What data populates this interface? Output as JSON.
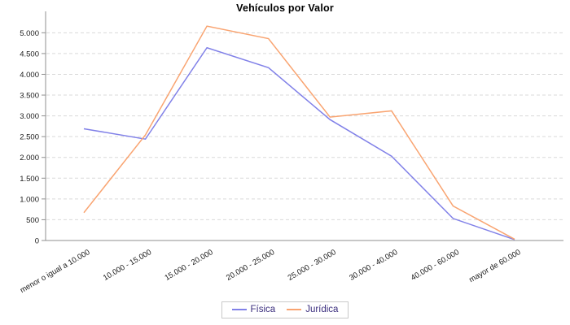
{
  "chart_data": {
    "type": "line",
    "title": "Vehículos por Valor",
    "categories": [
      "menor o igual a 10.000",
      "10.000 - 15.000",
      "15.000 - 20.000",
      "20.000 - 25.000",
      "25.000 - 30.000",
      "30.000 - 40.000",
      "40.000 - 60.000",
      "mayor de 60.000"
    ],
    "series": [
      {
        "name": "Física",
        "color": "#8181e8",
        "values": [
          2690,
          2440,
          4640,
          4160,
          2910,
          2030,
          530,
          20
        ]
      },
      {
        "name": "Jurídica",
        "color": "#f9a471",
        "values": [
          670,
          2540,
          5160,
          4860,
          2970,
          3120,
          830,
          30
        ]
      }
    ],
    "xlabel": "",
    "ylabel": "",
    "ylim": [
      0,
      5300
    ],
    "yticks": [
      0,
      500,
      1000,
      1500,
      2000,
      2500,
      3000,
      3500,
      4000,
      4500,
      5000
    ],
    "ytick_labels": [
      "0",
      "500",
      "1.000",
      "1.500",
      "2.000",
      "2.500",
      "3.000",
      "3.500",
      "4.000",
      "4.500",
      "5.000"
    ],
    "grid": "horizontal-dashed",
    "legend_position": "bottom"
  },
  "colors": {
    "background": "#ffffff",
    "grid": "#d9d9d9",
    "axis": "#8f8f8f",
    "tick_mark": "#8f8f8f",
    "tick_text": "#1a1a1a",
    "title_text": "#000000",
    "legend_text": "#3a2d7d",
    "legend_border": "#c9c9c9"
  }
}
